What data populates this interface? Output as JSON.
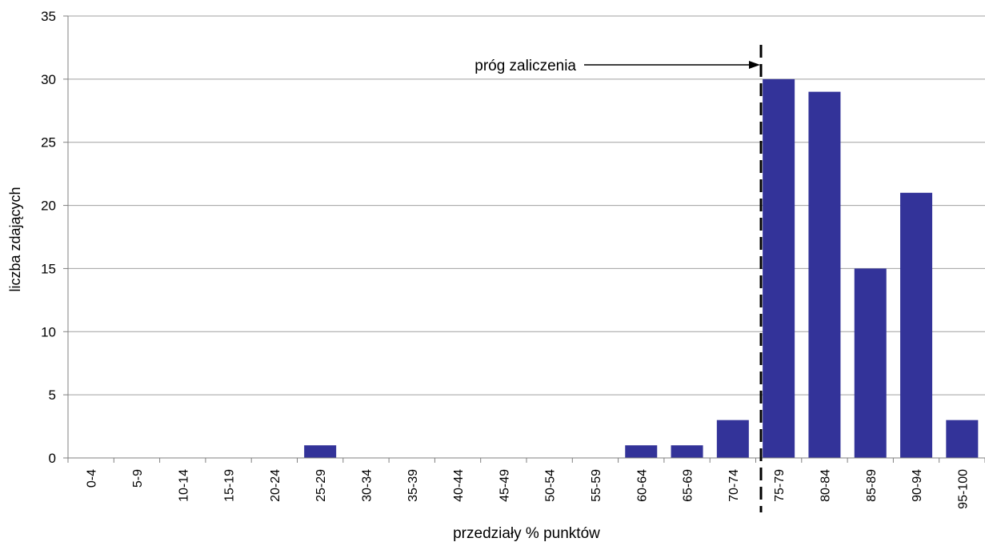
{
  "chart_data": {
    "type": "bar",
    "title": "",
    "xlabel": "przedziały % punktów",
    "ylabel": "liczba zdających",
    "categories": [
      "0-4",
      "5-9",
      "10-14",
      "15-19",
      "20-24",
      "25-29",
      "30-34",
      "35-39",
      "40-44",
      "45-49",
      "50-54",
      "55-59",
      "60-64",
      "65-69",
      "70-74",
      "75-79",
      "80-84",
      "85-89",
      "90-94",
      "95-100"
    ],
    "values": [
      0,
      0,
      0,
      0,
      0,
      1,
      0,
      0,
      0,
      0,
      0,
      0,
      1,
      1,
      3,
      30,
      29,
      15,
      21,
      3
    ],
    "ylim": [
      0,
      35
    ],
    "yticks": [
      0,
      5,
      10,
      15,
      20,
      25,
      30,
      35
    ],
    "grid": true,
    "bar_color": "#333399",
    "annotation": {
      "text": "próg zaliczenia",
      "threshold_between": [
        "70-74",
        "75-79"
      ]
    }
  }
}
